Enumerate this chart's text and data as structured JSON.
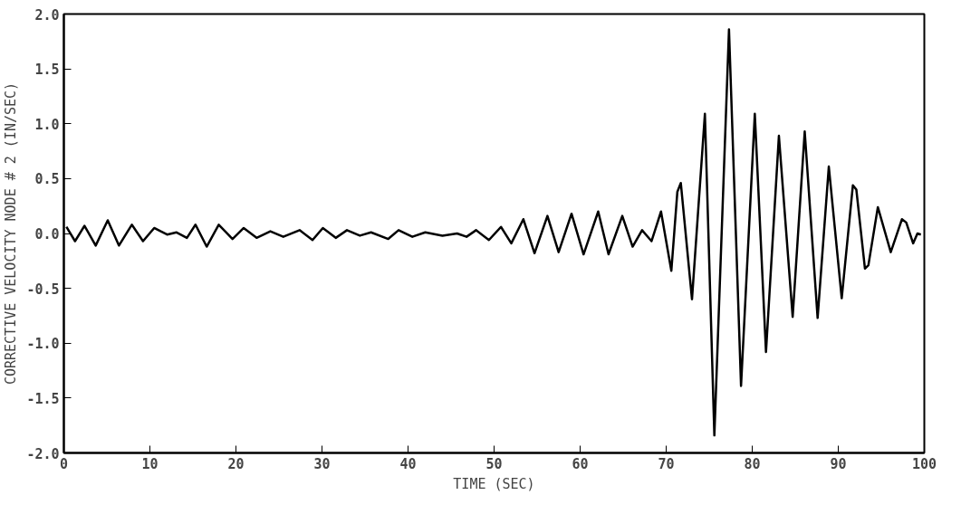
{
  "chart_data": {
    "type": "line",
    "xlabel": "TIME (SEC)",
    "ylabel": "CORRECTIVE VELOCITY NODE # 2 (IN/SEC)",
    "series": [
      {
        "color": "#000000",
        "x": [
          0.3,
          1.3,
          2.4,
          3.7,
          5.1,
          6.4,
          7.9,
          9.2,
          10.5,
          12.0,
          13.1,
          14.3,
          15.3,
          16.6,
          18.0,
          19.6,
          20.9,
          22.4,
          24.0,
          25.5,
          27.4,
          28.9,
          30.1,
          31.6,
          32.9,
          34.4,
          35.7,
          37.7,
          38.9,
          40.5,
          42.0,
          44.0,
          45.7,
          46.8,
          47.9,
          49.4,
          50.8,
          52.0,
          53.4,
          54.7,
          56.2,
          57.5,
          59.0,
          60.4,
          62.1,
          63.3,
          64.9,
          66.1,
          67.2,
          68.3,
          69.4,
          70.6,
          71.3,
          71.7,
          73.0,
          74.5,
          75.6,
          77.3,
          78.7,
          80.3,
          81.6,
          83.1,
          84.7,
          86.1,
          87.6,
          88.9,
          90.4,
          91.7,
          92.1,
          93.1,
          93.5,
          94.6,
          96.1,
          97.4,
          97.9,
          98.7,
          99.2,
          99.6
        ],
        "values": [
          0.06,
          -0.07,
          0.07,
          -0.11,
          0.12,
          -0.11,
          0.08,
          -0.07,
          0.05,
          -0.01,
          0.01,
          -0.04,
          0.08,
          -0.12,
          0.08,
          -0.05,
          0.05,
          -0.04,
          0.02,
          -0.03,
          0.03,
          -0.06,
          0.05,
          -0.04,
          0.03,
          -0.02,
          0.01,
          -0.05,
          0.03,
          -0.03,
          0.01,
          -0.02,
          0.0,
          -0.03,
          0.03,
          -0.06,
          0.06,
          -0.09,
          0.13,
          -0.18,
          0.16,
          -0.17,
          0.18,
          -0.19,
          0.2,
          -0.19,
          0.16,
          -0.12,
          0.03,
          -0.07,
          0.2,
          -0.34,
          0.38,
          0.46,
          -0.6,
          1.09,
          -1.84,
          1.86,
          -1.39,
          1.09,
          -1.08,
          0.89,
          -0.76,
          0.93,
          -0.77,
          0.61,
          -0.59,
          0.44,
          0.4,
          -0.32,
          -0.29,
          0.24,
          -0.17,
          0.13,
          0.1,
          -0.09,
          0.0,
          -0.01
        ]
      }
    ],
    "xlim": [
      0,
      100
    ],
    "xticks": [
      0,
      10,
      20,
      30,
      40,
      50,
      60,
      70,
      80,
      90,
      100
    ],
    "ylim": [
      -2.0,
      2.0
    ],
    "yticks": [
      {
        "value": -2.0,
        "label": "-2.0"
      },
      {
        "value": -1.5,
        "label": "-1.5"
      },
      {
        "value": -1.0,
        "label": "-1.0"
      },
      {
        "value": -0.5,
        "label": "-0.5"
      },
      {
        "value": 0.0,
        "label": "0.0"
      },
      {
        "value": 0.5,
        "label": "0.5"
      },
      {
        "value": 1.0,
        "label": "1.0"
      },
      {
        "value": 1.5,
        "label": "1.5"
      },
      {
        "value": 2.0,
        "label": "2.0"
      }
    ],
    "marker": "none",
    "line_style": "solid"
  }
}
